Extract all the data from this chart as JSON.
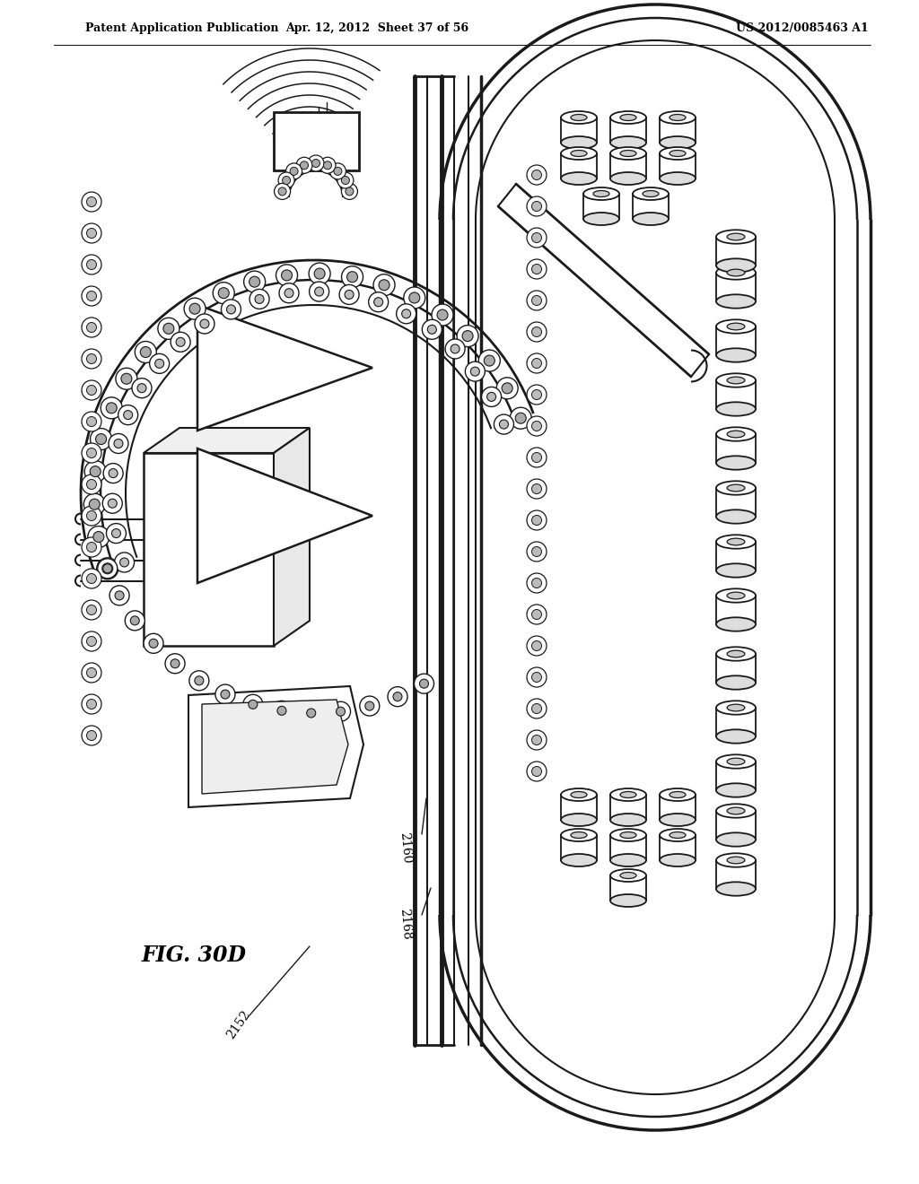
{
  "background_color": "#ffffff",
  "header_left": "Patent Application Publication",
  "header_center": "Apr. 12, 2012  Sheet 37 of 56",
  "header_right": "US 2012/0085463 A1",
  "figure_label": "FIG. 30D",
  "ref_2152": "2152",
  "ref_2160": "2160",
  "ref_2168": "2168",
  "line_color": "#1a1a1a",
  "lw": 1.5,
  "label_fontsize": 10
}
